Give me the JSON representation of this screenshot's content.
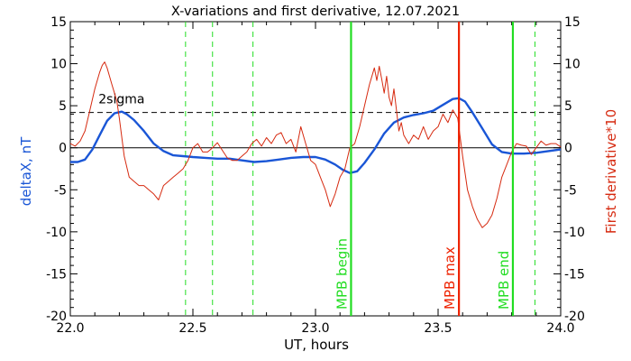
{
  "chart_data": {
    "type": "line",
    "title": "X-variations and first derivative, 12.07.2021",
    "xlabel": "UT, hours",
    "ylabel_left": "deltaX, nT",
    "ylabel_right": "First derivative*10",
    "xlim": [
      22.0,
      24.0
    ],
    "ylim": [
      -20,
      15
    ],
    "x_ticks": [
      "22.0",
      "22.5",
      "23.0",
      "23.5",
      "24.0"
    ],
    "y_ticks": [
      "15",
      "10",
      "5",
      "0",
      "-5",
      "-10",
      "-15",
      "-20"
    ],
    "grid": false,
    "colors": {
      "deltaX": "#1a56d6",
      "derivative": "#d62a10",
      "mpb": "#22dd22",
      "mpb_max": "#ee2200",
      "ref": "#000000"
    },
    "series": [
      {
        "key": "deltaX",
        "color": "#1a56d6",
        "x": [
          22.0,
          22.03,
          22.06,
          22.09,
          22.12,
          22.15,
          22.18,
          22.21,
          22.23,
          22.26,
          22.3,
          22.34,
          22.38,
          22.42,
          22.46,
          22.5,
          22.55,
          22.6,
          22.65,
          22.7,
          22.75,
          22.8,
          22.85,
          22.9,
          22.95,
          23.0,
          23.04,
          23.08,
          23.11,
          23.14,
          23.17,
          23.2,
          23.24,
          23.28,
          23.32,
          23.36,
          23.4,
          23.44,
          23.48,
          23.52,
          23.56,
          23.585,
          23.61,
          23.64,
          23.68,
          23.72,
          23.76,
          23.8,
          23.85,
          23.9,
          23.95,
          24.0
        ],
        "values": [
          -1.7,
          -1.7,
          -1.4,
          -0.2,
          1.5,
          3.2,
          4.1,
          4.3,
          4.0,
          3.3,
          2.0,
          0.5,
          -0.4,
          -0.9,
          -1.0,
          -1.1,
          -1.2,
          -1.3,
          -1.3,
          -1.5,
          -1.7,
          -1.6,
          -1.4,
          -1.2,
          -1.1,
          -1.1,
          -1.4,
          -2.0,
          -2.6,
          -3.0,
          -2.8,
          -1.8,
          -0.2,
          1.7,
          3.0,
          3.6,
          3.9,
          4.1,
          4.4,
          5.1,
          5.8,
          5.9,
          5.5,
          4.2,
          2.3,
          0.4,
          -0.5,
          -0.7,
          -0.7,
          -0.6,
          -0.4,
          -0.2
        ]
      },
      {
        "key": "derivative",
        "color": "#d62a10",
        "x": [
          22.0,
          22.02,
          22.04,
          22.06,
          22.08,
          22.1,
          22.12,
          22.13,
          22.14,
          22.15,
          22.16,
          22.17,
          22.18,
          22.19,
          22.2,
          22.22,
          22.24,
          22.26,
          22.28,
          22.3,
          22.32,
          22.34,
          22.36,
          22.38,
          22.4,
          22.42,
          22.44,
          22.46,
          22.48,
          22.5,
          22.52,
          22.54,
          22.56,
          22.58,
          22.6,
          22.62,
          22.64,
          22.66,
          22.68,
          22.7,
          22.72,
          22.74,
          22.76,
          22.78,
          22.8,
          22.82,
          22.84,
          22.86,
          22.88,
          22.9,
          22.92,
          22.94,
          22.96,
          22.98,
          23.0,
          23.02,
          23.04,
          23.06,
          23.08,
          23.1,
          23.12,
          23.14,
          23.16,
          23.18,
          23.2,
          23.22,
          23.24,
          23.25,
          23.26,
          23.27,
          23.28,
          23.29,
          23.3,
          23.31,
          23.32,
          23.33,
          23.34,
          23.35,
          23.36,
          23.38,
          23.4,
          23.42,
          23.44,
          23.46,
          23.48,
          23.5,
          23.52,
          23.54,
          23.56,
          23.58,
          23.6,
          23.62,
          23.64,
          23.66,
          23.68,
          23.7,
          23.72,
          23.74,
          23.76,
          23.78,
          23.8,
          23.82,
          23.84,
          23.86,
          23.88,
          23.9,
          23.92,
          23.94,
          23.96,
          23.98,
          24.0
        ],
        "values": [
          0.5,
          0.2,
          0.8,
          2.0,
          4.5,
          7.0,
          9.0,
          9.8,
          10.2,
          9.5,
          8.5,
          7.5,
          6.5,
          5.5,
          3.5,
          -1.0,
          -3.5,
          -4.0,
          -4.5,
          -4.5,
          -5.0,
          -5.5,
          -6.2,
          -4.5,
          -4.0,
          -3.5,
          -3.0,
          -2.5,
          -1.5,
          0.0,
          0.5,
          -0.5,
          -0.5,
          0.0,
          0.6,
          -0.3,
          -1.2,
          -1.5,
          -1.5,
          -1.0,
          -0.5,
          0.5,
          1.0,
          0.2,
          1.2,
          0.5,
          1.5,
          1.8,
          0.5,
          1.0,
          -0.5,
          2.5,
          0.5,
          -1.5,
          -2.0,
          -3.5,
          -5.0,
          -7.0,
          -5.5,
          -3.5,
          -2.5,
          0.0,
          0.5,
          2.5,
          5.0,
          7.5,
          9.5,
          8.0,
          9.7,
          8.2,
          6.5,
          8.5,
          6.0,
          5.0,
          7.0,
          4.5,
          2.0,
          3.0,
          1.5,
          0.5,
          1.5,
          1.0,
          2.5,
          1.0,
          2.0,
          2.5,
          4.0,
          3.0,
          4.5,
          3.5,
          -1.0,
          -5.0,
          -7.0,
          -8.5,
          -9.5,
          -9.0,
          -8.0,
          -6.0,
          -3.5,
          -2.0,
          -0.5,
          0.5,
          0.3,
          0.2,
          -0.8,
          0.0,
          0.8,
          0.3,
          0.5,
          0.5,
          0.1
        ]
      }
    ],
    "reference_lines": [
      {
        "label": "2sigma",
        "y": 4.2,
        "style": "dashed",
        "color": "#000000"
      },
      {
        "y": 0,
        "style": "solid",
        "color": "#000000"
      }
    ],
    "vertical_lines": [
      {
        "x": 22.47,
        "style": "dashed",
        "color": "#22dd22"
      },
      {
        "x": 22.58,
        "style": "dashed",
        "color": "#22dd22"
      },
      {
        "x": 22.745,
        "style": "dashed",
        "color": "#22dd22"
      },
      {
        "x": 23.895,
        "style": "dashed",
        "color": "#22dd22"
      },
      {
        "x": 23.145,
        "style": "solid",
        "color": "#22dd22",
        "label": "MPB begin"
      },
      {
        "x": 23.585,
        "style": "solid",
        "color": "#ee2200",
        "label": "MPB max"
      },
      {
        "x": 23.805,
        "style": "solid",
        "color": "#22dd22",
        "label": "MPB end"
      }
    ]
  }
}
